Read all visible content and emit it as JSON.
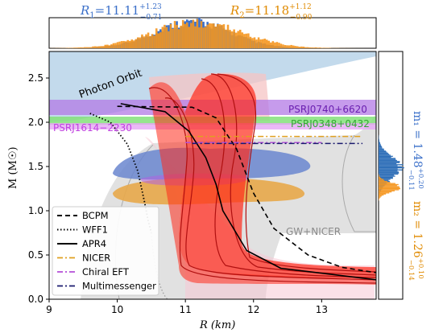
{
  "chart_data": {
    "type": "line",
    "xlabel": "R (km)",
    "ylabel": "M (M☉)",
    "xlim": [
      9,
      13.8
    ],
    "ylim": [
      0,
      2.8
    ],
    "xticks": [
      "9",
      "10",
      "11",
      "12",
      "13"
    ],
    "yticks": [
      "0.0",
      "0.5",
      "1.0",
      "1.5",
      "2.0",
      "2.5"
    ],
    "legend_position": "lower-left",
    "legend": [
      {
        "name": "BCPM",
        "style": "dashed",
        "color": "#000000"
      },
      {
        "name": "WFF1",
        "style": "dotted",
        "color": "#000000"
      },
      {
        "name": "APR4",
        "style": "solid",
        "color": "#000000"
      },
      {
        "name": "NICER",
        "style": "dashdot",
        "color": "#e0a020"
      },
      {
        "name": "Chiral EFT",
        "style": "dashdot",
        "color": "#b44fd8"
      },
      {
        "name": "Multimessenger",
        "style": "dashdot",
        "color": "#1a1a6e"
      }
    ],
    "annotations": {
      "photon_orbit": "Photon Orbit",
      "gw_nicer": "GW+NICER",
      "psr0740": "PSRJ0740+6620",
      "psr0348": "PSRJ0348+0432",
      "psr1614": "PSRJ1614−2230"
    },
    "pulsar_bands": [
      {
        "name": "PSRJ0740+6620",
        "m_low": 2.04,
        "m_high": 2.24,
        "color": "#a050e0"
      },
      {
        "name": "PSRJ0348+0432",
        "m_low": 1.97,
        "m_high": 2.05,
        "color": "#66e066"
      },
      {
        "name": "PSRJ1614−2230",
        "m_low": 1.9,
        "m_high": 1.98,
        "color": "#e080f0"
      }
    ],
    "top_histogram_text": {
      "r1_label": "R",
      "r1_sub": "1",
      "r1_value": "=11.11",
      "r1_plus": "+1.23",
      "r1_minus": "−0.71",
      "r2_label": "R",
      "r2_sub": "2",
      "r2_value": "=11.18",
      "r2_plus": "+1.12",
      "r2_minus": "−0.90",
      "r1_color": "#3a6fc9",
      "r2_color": "#e08a00"
    },
    "right_histogram_text": {
      "m1": "m₁ = 1.48",
      "m1_plus": "+0.20",
      "m1_minus": "−0.11",
      "m2": "m₂ = 1.26",
      "m2_plus": "+0.10",
      "m2_minus": "−0.14",
      "m1_color": "#3a6fc9",
      "m2_color": "#e08a00"
    },
    "series": [
      {
        "name": "BCPM",
        "x": [
          10.0,
          11.1,
          11.45,
          11.75,
          12.0,
          12.3,
          12.8,
          13.3,
          13.8
        ],
        "y": [
          2.18,
          2.17,
          2.05,
          1.7,
          1.2,
          0.8,
          0.5,
          0.36,
          0.3
        ]
      },
      {
        "name": "WFF1",
        "x": [
          9.6,
          9.9,
          10.15,
          10.3,
          10.4,
          10.45,
          10.5
        ],
        "y": [
          2.1,
          2.0,
          1.75,
          1.45,
          1.1,
          0.9,
          0.75
        ]
      },
      {
        "name": "APR4",
        "x": [
          10.05,
          10.7,
          11.05,
          11.3,
          11.45,
          11.55,
          11.9,
          12.4,
          13.8
        ],
        "y": [
          2.21,
          2.12,
          1.9,
          1.6,
          1.3,
          1.0,
          0.55,
          0.35,
          0.22
        ]
      },
      {
        "name": "NICER",
        "x": [
          11.0,
          13.6
        ],
        "y": [
          1.84,
          1.84
        ]
      },
      {
        "name": "Chiral EFT",
        "x": [
          11.0,
          13.0
        ],
        "y": [
          1.77,
          1.77
        ]
      },
      {
        "name": "Multimessenger",
        "x": [
          11.1,
          13.6
        ],
        "y": [
          1.76,
          1.76
        ]
      }
    ],
    "colors": {
      "posterior_red": "#ff2a1a",
      "photon_orbit_fill": "#bcd6ea",
      "gw_nicer_fill": "#d9d9d9",
      "blue_contour": "#6a86cf",
      "orange_contour": "#e8a84a",
      "purple_contour": "#b060e0"
    }
  }
}
